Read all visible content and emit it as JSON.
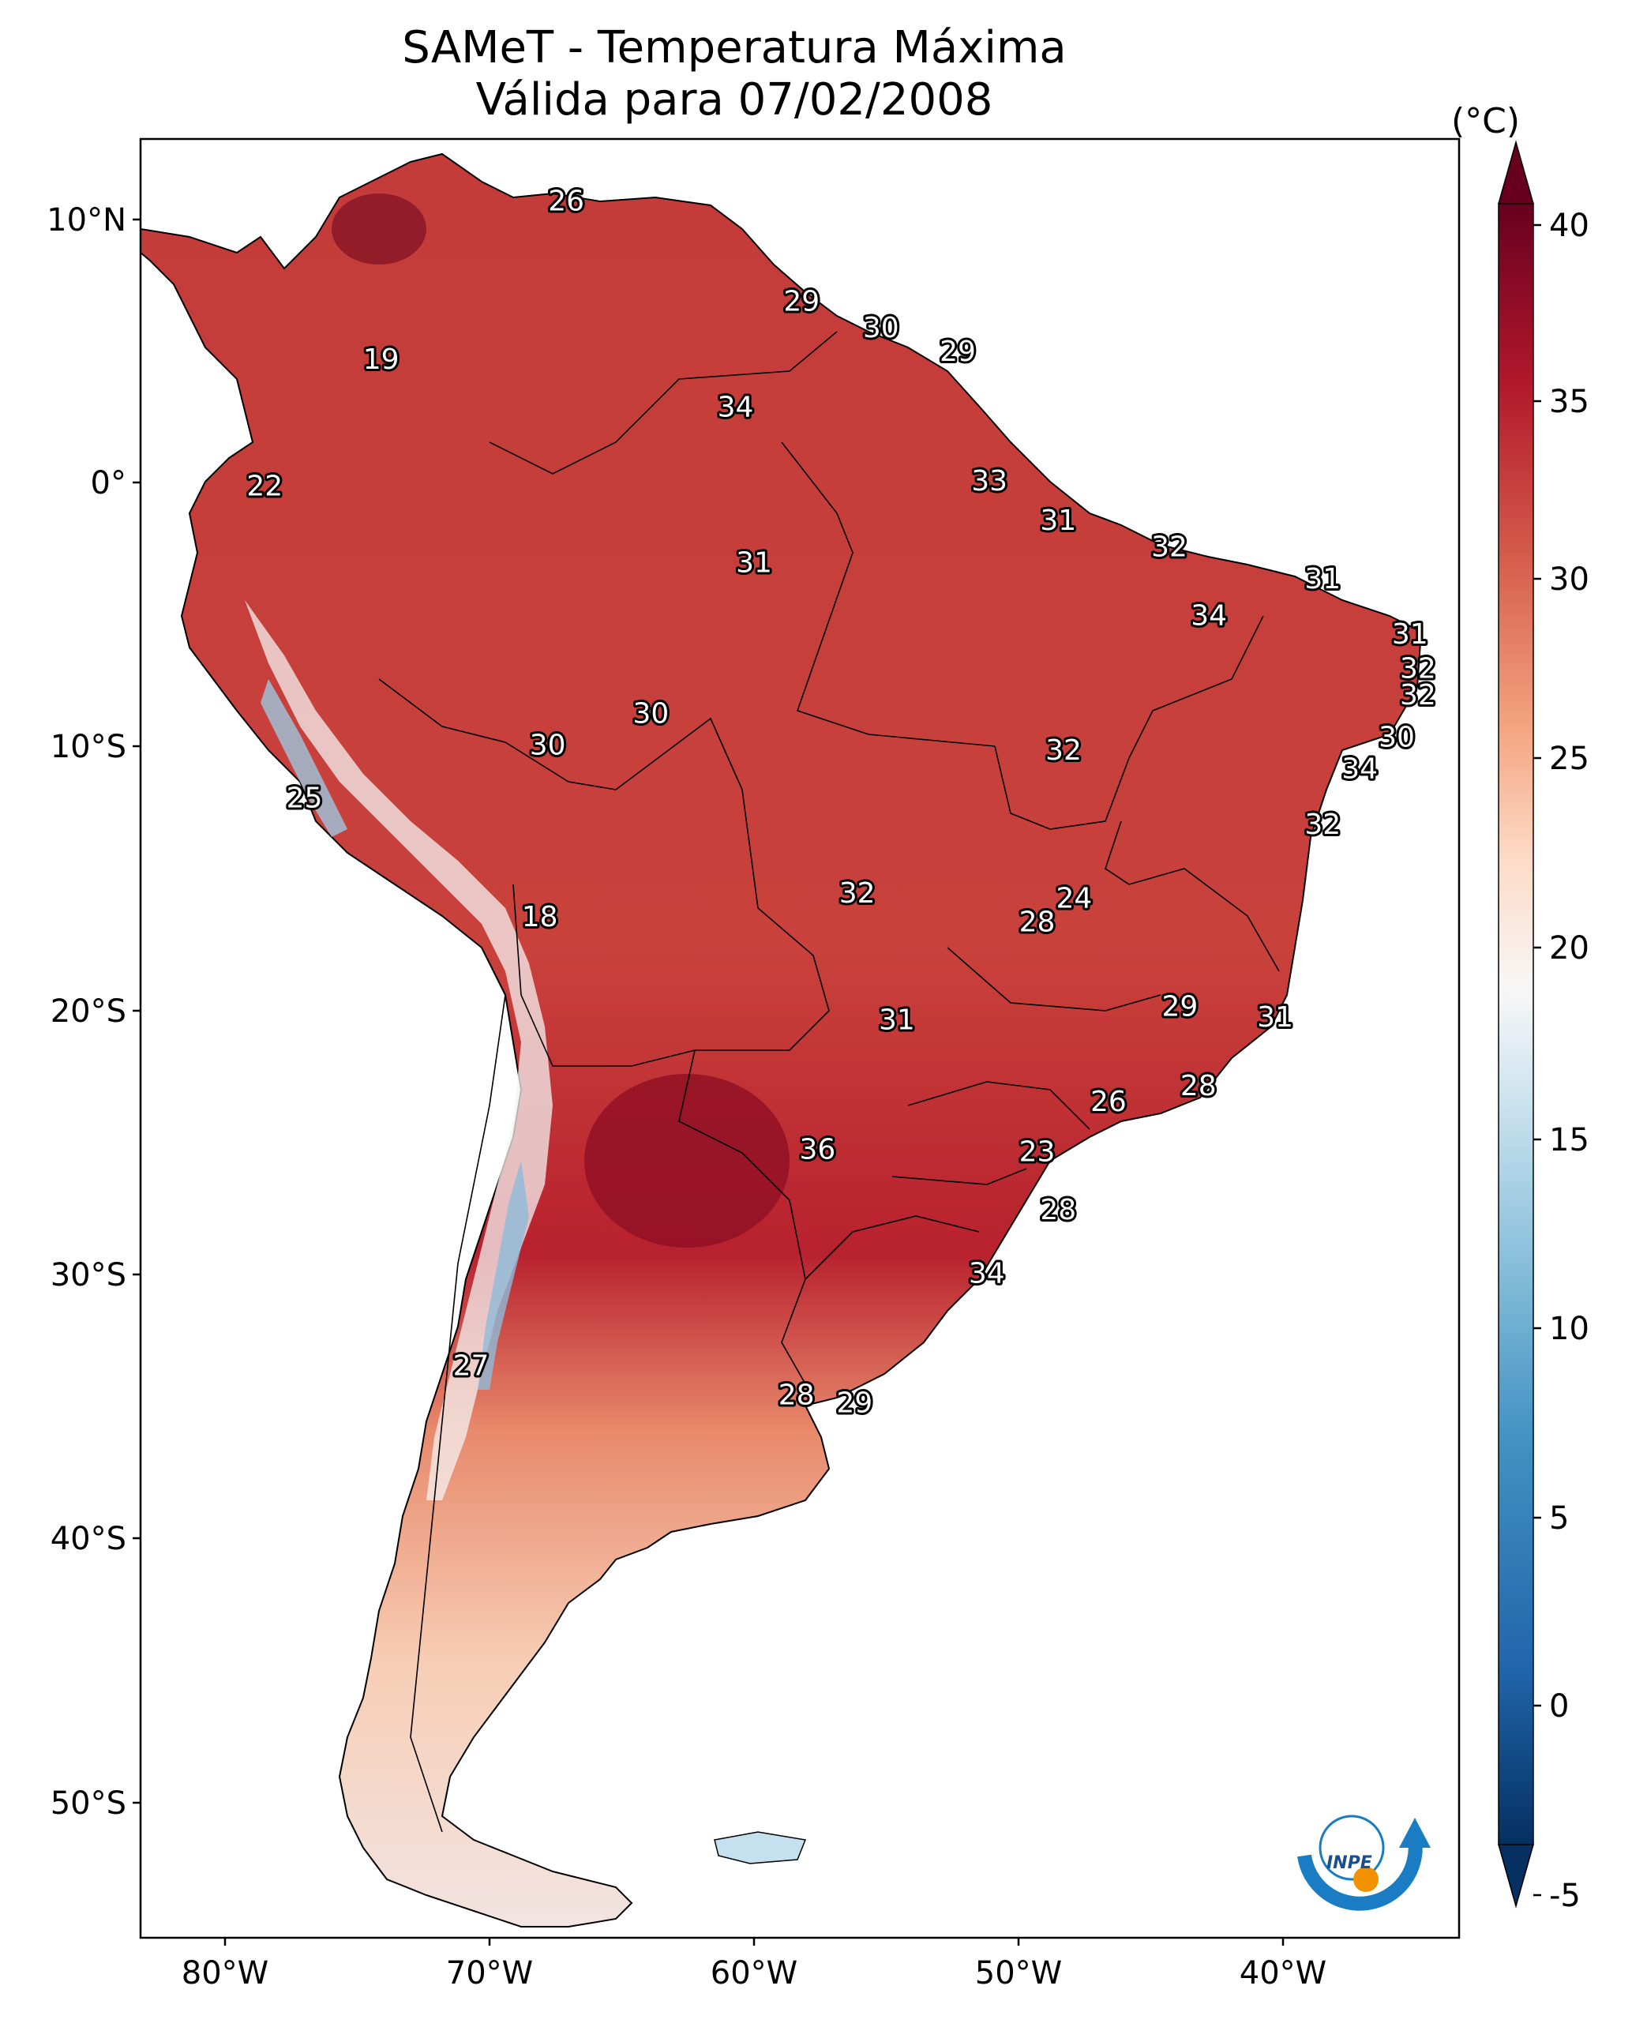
{
  "title": {
    "line1": "SAMeT - Temperatura Máxima",
    "line2": "Válida para 07/02/2008"
  },
  "colorbar": {
    "unit": "(°C)",
    "ticks": [
      "40",
      "35",
      "30",
      "25",
      "20",
      "15",
      "10",
      "5",
      "0",
      "-5"
    ]
  },
  "axes": {
    "lat_ticks": [
      "10°N",
      "0°",
      "10°S",
      "20°S",
      "30°S",
      "40°S",
      "50°S"
    ],
    "lon_ticks": [
      "80°W",
      "70°W",
      "60°W",
      "50°W",
      "40°W"
    ]
  },
  "logo": {
    "text": "INPE"
  },
  "city_labels": [
    {
      "value": "26",
      "lon": -67.1,
      "lat": 10.6
    },
    {
      "value": "19",
      "lon": -74.1,
      "lat": 4.6
    },
    {
      "value": "22",
      "lon": -78.5,
      "lat": -0.2
    },
    {
      "value": "29",
      "lon": -58.2,
      "lat": 6.8
    },
    {
      "value": "30",
      "lon": -55.2,
      "lat": 5.8
    },
    {
      "value": "29",
      "lon": -52.3,
      "lat": 4.9
    },
    {
      "value": "34",
      "lon": -60.7,
      "lat": 2.8
    },
    {
      "value": "33",
      "lon": -51.1,
      "lat": 0.0
    },
    {
      "value": "31",
      "lon": -48.5,
      "lat": -1.5
    },
    {
      "value": "31",
      "lon": -60.0,
      "lat": -3.1
    },
    {
      "value": "32",
      "lon": -44.3,
      "lat": -2.5
    },
    {
      "value": "31",
      "lon": -38.5,
      "lat": -3.7
    },
    {
      "value": "34",
      "lon": -42.8,
      "lat": -5.1
    },
    {
      "value": "31",
      "lon": -35.2,
      "lat": -5.8
    },
    {
      "value": "32",
      "lon": -34.9,
      "lat": -7.1
    },
    {
      "value": "32",
      "lon": -34.9,
      "lat": -8.1
    },
    {
      "value": "30",
      "lon": -35.7,
      "lat": -9.7
    },
    {
      "value": "34",
      "lon": -37.1,
      "lat": -10.9
    },
    {
      "value": "32",
      "lon": -38.5,
      "lat": -13.0
    },
    {
      "value": "30",
      "lon": -63.9,
      "lat": -8.8
    },
    {
      "value": "30",
      "lon": -67.8,
      "lat": -10.0
    },
    {
      "value": "25",
      "lon": -77.0,
      "lat": -12.0
    },
    {
      "value": "32",
      "lon": -48.3,
      "lat": -10.2
    },
    {
      "value": "24",
      "lon": -47.9,
      "lat": -15.8
    },
    {
      "value": "28",
      "lon": -49.3,
      "lat": -16.7
    },
    {
      "value": "32",
      "lon": -56.1,
      "lat": -15.6
    },
    {
      "value": "18",
      "lon": -68.1,
      "lat": -16.5
    },
    {
      "value": "29",
      "lon": -43.9,
      "lat": -19.9
    },
    {
      "value": "31",
      "lon": -40.3,
      "lat": -20.3
    },
    {
      "value": "31",
      "lon": -54.6,
      "lat": -20.4
    },
    {
      "value": "26",
      "lon": -46.6,
      "lat": -23.5
    },
    {
      "value": "28",
      "lon": -43.2,
      "lat": -22.9
    },
    {
      "value": "23",
      "lon": -49.3,
      "lat": -25.4
    },
    {
      "value": "36",
      "lon": -57.6,
      "lat": -25.3
    },
    {
      "value": "28",
      "lon": -48.5,
      "lat": -27.6
    },
    {
      "value": "34",
      "lon": -51.2,
      "lat": -30.0
    },
    {
      "value": "27",
      "lon": -70.7,
      "lat": -33.5
    },
    {
      "value": "28",
      "lon": -58.4,
      "lat": -34.6
    },
    {
      "value": "29",
      "lon": -56.2,
      "lat": -34.9
    }
  ]
}
